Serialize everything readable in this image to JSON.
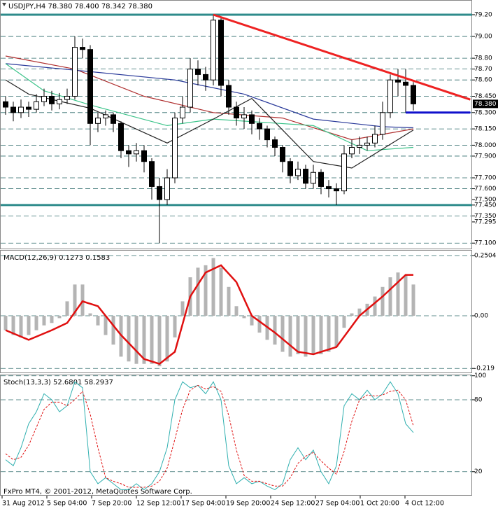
{
  "chart_data": [
    {
      "type": "candlestick",
      "title": "USDJPY,H4 78.380 78.400 78.342 78.380",
      "open": [
        78.4,
        78.35,
        78.3,
        78.35,
        78.33,
        78.4,
        78.45,
        78.38,
        78.42,
        78.45,
        78.9,
        78.88,
        78.2,
        78.25,
        78.28,
        78.2,
        77.95,
        77.92,
        77.95,
        77.85,
        77.62,
        77.5,
        77.7,
        78.25,
        78.35,
        78.7,
        78.65,
        78.6,
        79.15,
        78.55,
        78.35,
        78.25,
        78.28,
        78.2,
        78.15,
        78.05,
        77.98,
        77.85,
        77.72,
        77.78,
        77.65,
        77.75,
        77.62,
        77.6,
        77.58,
        77.92,
        77.98,
        78.0,
        78.02,
        78.1,
        78.3,
        78.6,
        78.58,
        78.55
      ],
      "high": [
        78.45,
        78.4,
        78.42,
        78.4,
        78.47,
        78.52,
        78.5,
        78.48,
        78.52,
        79.0,
        78.98,
        78.92,
        78.3,
        78.32,
        78.3,
        78.22,
        78.0,
        78.02,
        78.0,
        77.88,
        77.7,
        77.78,
        78.3,
        78.45,
        78.8,
        78.78,
        78.72,
        79.2,
        79.18,
        78.6,
        78.4,
        78.35,
        78.32,
        78.25,
        78.18,
        78.08,
        78.0,
        77.88,
        77.85,
        77.82,
        77.82,
        77.78,
        77.68,
        77.65,
        78.0,
        78.05,
        78.08,
        78.08,
        78.18,
        78.4,
        78.65,
        78.7,
        78.7,
        78.58
      ],
      "low": [
        78.28,
        78.22,
        78.25,
        78.26,
        78.3,
        78.36,
        78.32,
        78.33,
        78.38,
        78.42,
        78.8,
        78.0,
        78.12,
        78.18,
        78.12,
        77.88,
        77.8,
        77.85,
        77.75,
        77.5,
        77.1,
        77.45,
        77.65,
        78.2,
        78.3,
        78.55,
        78.5,
        78.55,
        78.45,
        78.28,
        78.18,
        78.15,
        78.1,
        78.05,
        77.98,
        77.9,
        77.75,
        77.65,
        77.68,
        77.6,
        77.6,
        77.55,
        77.52,
        77.45,
        77.55,
        77.88,
        77.92,
        77.95,
        77.98,
        78.05,
        78.25,
        78.45,
        78.3,
        78.32
      ],
      "close": [
        78.35,
        78.3,
        78.35,
        78.33,
        78.4,
        78.45,
        78.38,
        78.42,
        78.45,
        78.9,
        78.88,
        78.2,
        78.25,
        78.28,
        78.2,
        77.95,
        77.92,
        77.95,
        77.85,
        77.62,
        77.5,
        77.7,
        78.25,
        78.35,
        78.7,
        78.65,
        78.6,
        79.15,
        78.55,
        78.35,
        78.25,
        78.28,
        78.2,
        78.15,
        78.05,
        77.98,
        77.85,
        77.72,
        77.78,
        77.65,
        77.75,
        77.62,
        77.6,
        77.58,
        77.92,
        77.98,
        78.0,
        78.02,
        78.1,
        78.3,
        78.6,
        78.58,
        78.55,
        78.38
      ],
      "ylim": [
        77.05,
        79.335
      ],
      "yticks": [
        {
          "value": 79.2,
          "label": "79.20"
        },
        {
          "value": 79,
          "label": "79.00"
        },
        {
          "value": 78.8,
          "label": "78.80"
        },
        {
          "value": 78.7,
          "label": "78.70"
        },
        {
          "value": 78.6,
          "label": "78.60"
        },
        {
          "value": 78.45,
          "label": "78.450"
        },
        {
          "value": 78.3,
          "label": "78.300"
        },
        {
          "value": 78.15,
          "label": "78.150"
        },
        {
          "value": 78,
          "label": "78.000"
        },
        {
          "value": 77.9,
          "label": "77.900"
        },
        {
          "value": 77.7,
          "label": "77.700"
        },
        {
          "value": 77.6,
          "label": "77.600"
        },
        {
          "value": 77.45,
          "label": "77.450"
        },
        {
          "value": 77.35,
          "label": "77.350"
        },
        {
          "value": 77.1,
          "label": "77.100"
        }
      ],
      "yticks_minor": [
        {
          "value": 77.5,
          "label": "77.500"
        },
        77.295
      ],
      "grid": true,
      "last_price": {
        "value": 78.38,
        "label": "78.380"
      },
      "levels": [
        {
          "value": 79.2,
          "color": "#2e8b8b"
        },
        {
          "value": 77.45,
          "color": "#2e8b8b"
        }
      ],
      "overlays": [
        {
          "color": "#b03030",
          "x": [
            0,
            9,
            18,
            27,
            36,
            45,
            53
          ],
          "values": [
            78.82,
            78.7,
            78.45,
            78.3,
            78.25,
            78.05,
            78.15
          ]
        },
        {
          "color": "#2a3a9a",
          "x": [
            0,
            9,
            22,
            31,
            40,
            49,
            53
          ],
          "values": [
            78.75,
            78.69,
            78.6,
            78.47,
            78.24,
            78.17,
            78.16
          ]
        },
        {
          "color": "#3cc48a",
          "x": [
            0,
            5,
            11,
            21,
            27,
            40,
            47,
            53
          ],
          "values": [
            78.75,
            78.5,
            78.37,
            78.18,
            78.24,
            78.18,
            77.95,
            77.98
          ]
        },
        {
          "color": "#222222",
          "x": [
            0,
            3,
            11,
            21,
            27,
            32,
            40,
            45,
            53
          ],
          "values": [
            78.6,
            78.47,
            78.34,
            78.02,
            78.24,
            78.43,
            77.85,
            77.79,
            78.14
          ]
        }
      ],
      "lines": [
        {
          "color": "#ee2222",
          "width": 3,
          "x": [
            27,
            60.4
          ],
          "values": [
            79.2,
            78.42
          ]
        },
        {
          "color": "#1010cc",
          "width": 3,
          "x": [
            52,
            60.4
          ],
          "values": [
            78.3,
            78.3
          ]
        }
      ]
    },
    {
      "type": "macd",
      "title": "MACD(12,26,9) 0.1273 0.1583",
      "ylim": [
        -0.2358,
        0.2737
      ],
      "yticks": [
        0.2504,
        {
          "value": 0,
          "label": "0.00"
        },
        -0.219
      ],
      "grid": true,
      "histogram": {
        "color": "#b4b4b4",
        "values": [
          -0.06,
          -0.08,
          -0.09,
          -0.08,
          -0.06,
          -0.04,
          -0.03,
          -0.01,
          0.06,
          0.13,
          0.13,
          0.01,
          -0.04,
          -0.08,
          -0.12,
          -0.17,
          -0.19,
          -0.2,
          -0.2,
          -0.2,
          -0.21,
          -0.19,
          -0.09,
          0.06,
          0.16,
          0.2,
          0.21,
          0.24,
          0.2,
          0.12,
          0.04,
          -0.01,
          -0.04,
          -0.07,
          -0.1,
          -0.12,
          -0.15,
          -0.17,
          -0.16,
          -0.17,
          -0.16,
          -0.16,
          -0.15,
          -0.13,
          -0.05,
          0.01,
          0.03,
          0.05,
          0.08,
          0.12,
          0.16,
          0.18,
          0.17,
          0.13
        ]
      },
      "signal": {
        "color": "#e01010",
        "x": [
          0,
          3,
          6,
          8,
          10,
          12,
          15,
          18,
          20,
          22,
          24,
          26,
          28,
          30,
          32,
          35,
          38,
          40,
          43,
          46,
          49,
          52,
          53
        ],
        "values": [
          -0.06,
          -0.1,
          -0.06,
          -0.03,
          0.06,
          0.04,
          -0.08,
          -0.18,
          -0.2,
          -0.15,
          0.08,
          0.18,
          0.21,
          0.14,
          0,
          -0.07,
          -0.15,
          -0.16,
          -0.13,
          0,
          0.08,
          0.17,
          0.17
        ]
      }
    },
    {
      "type": "stochastic",
      "title": "Stoch(13,3,3) 52.6801 58.2937",
      "ylim": [
        0,
        101
      ],
      "yticks": [
        100,
        80,
        20
      ],
      "grid": true,
      "main": {
        "color": "#30b0b0",
        "values": [
          30,
          25,
          40,
          60,
          70,
          85,
          80,
          70,
          75,
          95,
          90,
          20,
          10,
          15,
          10,
          5,
          5,
          10,
          5,
          10,
          20,
          40,
          80,
          95,
          90,
          92,
          85,
          95,
          80,
          25,
          10,
          15,
          10,
          12,
          8,
          5,
          10,
          30,
          40,
          30,
          38,
          20,
          10,
          25,
          75,
          85,
          80,
          88,
          80,
          85,
          95,
          85,
          60,
          52.68
        ]
      },
      "signal": {
        "color": "#e01010",
        "values": [
          35,
          30,
          32,
          42,
          57,
          72,
          78,
          78,
          75,
          80,
          87,
          68,
          40,
          15,
          12,
          10,
          7,
          7,
          7,
          8,
          12,
          23,
          47,
          72,
          88,
          92,
          89,
          91,
          87,
          67,
          38,
          17,
          12,
          12,
          10,
          8,
          8,
          15,
          27,
          33,
          36,
          29,
          23,
          18,
          37,
          62,
          80,
          84,
          83,
          84,
          87,
          88,
          80,
          58.29
        ]
      }
    }
  ],
  "x_axis": {
    "labels": [
      "31 Aug 2012",
      "5 Sep 04:00",
      "7 Sep 20:00",
      "12 Sep 12:00",
      "17 Sep 04:00",
      "19 Sep 20:00",
      "24 Sep 12:00",
      "27 Sep 04:00",
      "1 Oct 20:00",
      "4 Oct 12:00"
    ]
  },
  "footer": "FxPro MT4, © 2001-2012, MetaQuotes Software Corp."
}
